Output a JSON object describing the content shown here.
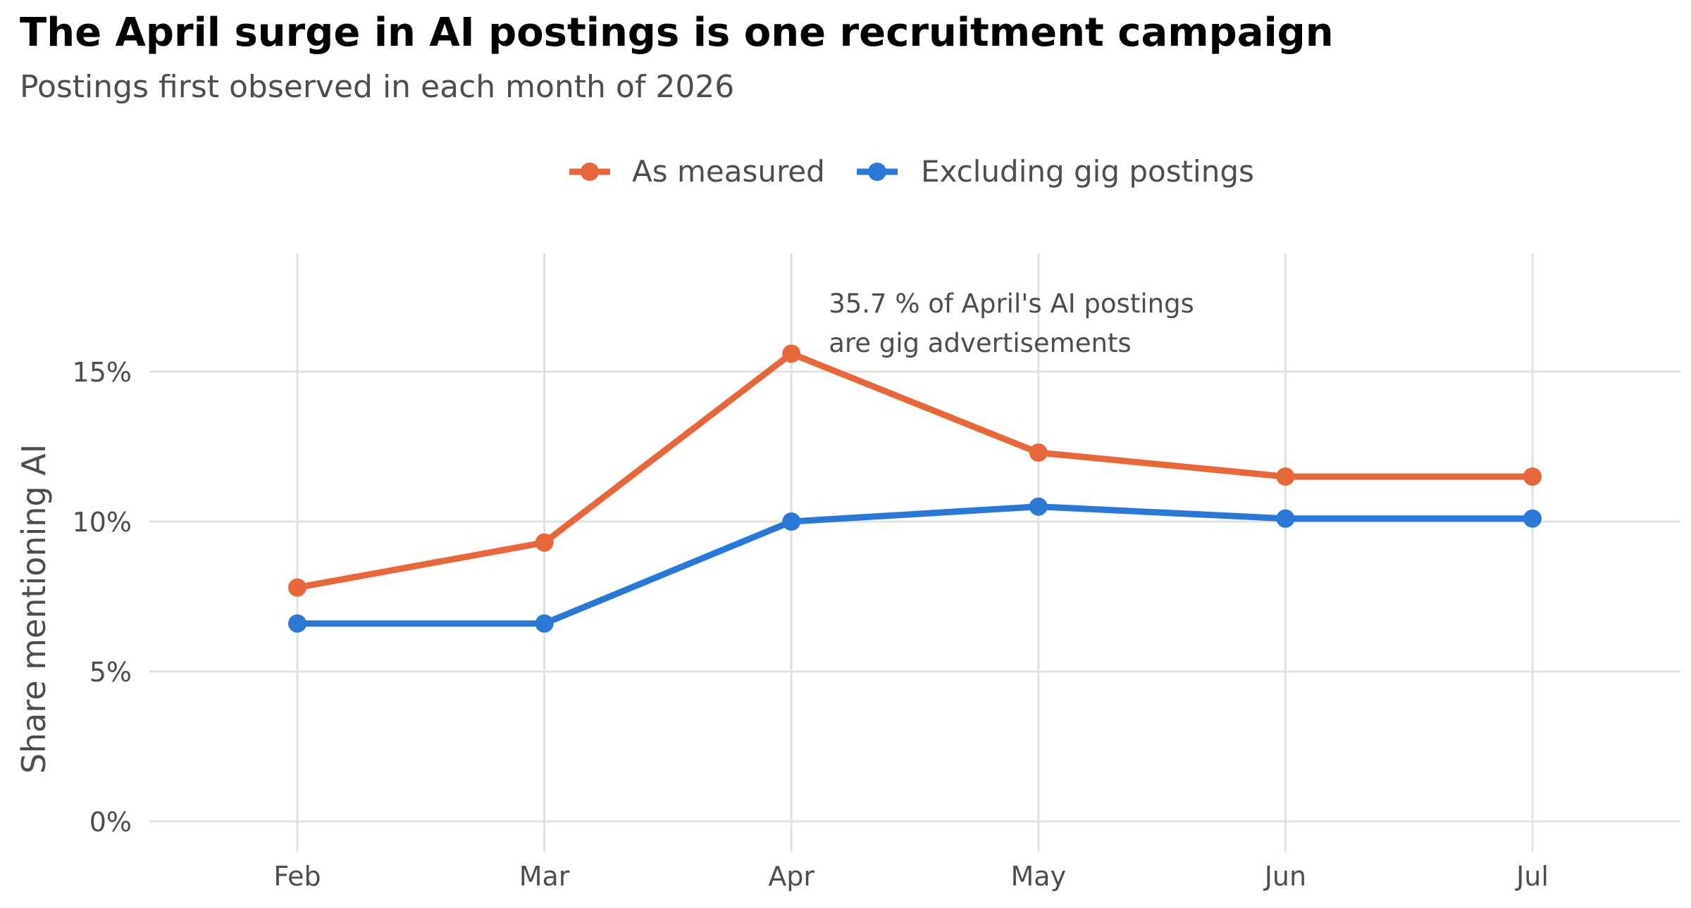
{
  "title": "The April surge in AI postings is one recruitment campaign",
  "subtitle": "Postings first observed in each month of 2026",
  "colors": {
    "as_measured": "#e8673a",
    "excluding_gig": "#2a78d6",
    "grid": "#e2e2dc",
    "axis_text": "#4d4d4d"
  },
  "chart_data": {
    "type": "line",
    "title": "The April surge in AI postings is one recruitment campaign",
    "subtitle": "Postings first observed in each month of 2026",
    "xlabel": "",
    "ylabel": "Share mentioning AI",
    "categories": [
      "Feb",
      "Mar",
      "Apr",
      "May",
      "Jun",
      "Jul"
    ],
    "yticks": [
      0,
      5,
      10,
      15
    ],
    "ytick_labels": [
      "0%",
      "5%",
      "10%",
      "15%"
    ],
    "ylim": [
      -1,
      19
    ],
    "grid": true,
    "legend_position": "top",
    "series": [
      {
        "name": "As measured",
        "color": "#e8673a",
        "values": [
          7.8,
          9.3,
          15.6,
          12.3,
          11.5,
          11.5
        ]
      },
      {
        "name": "Excluding gig postings",
        "color": "#2a78d6",
        "values": [
          6.6,
          6.6,
          10.0,
          10.5,
          10.1,
          10.1
        ]
      }
    ],
    "annotation": {
      "category": "Apr",
      "lines": [
        "35.7 % of April's AI postings",
        "are gig advertisements"
      ]
    }
  }
}
